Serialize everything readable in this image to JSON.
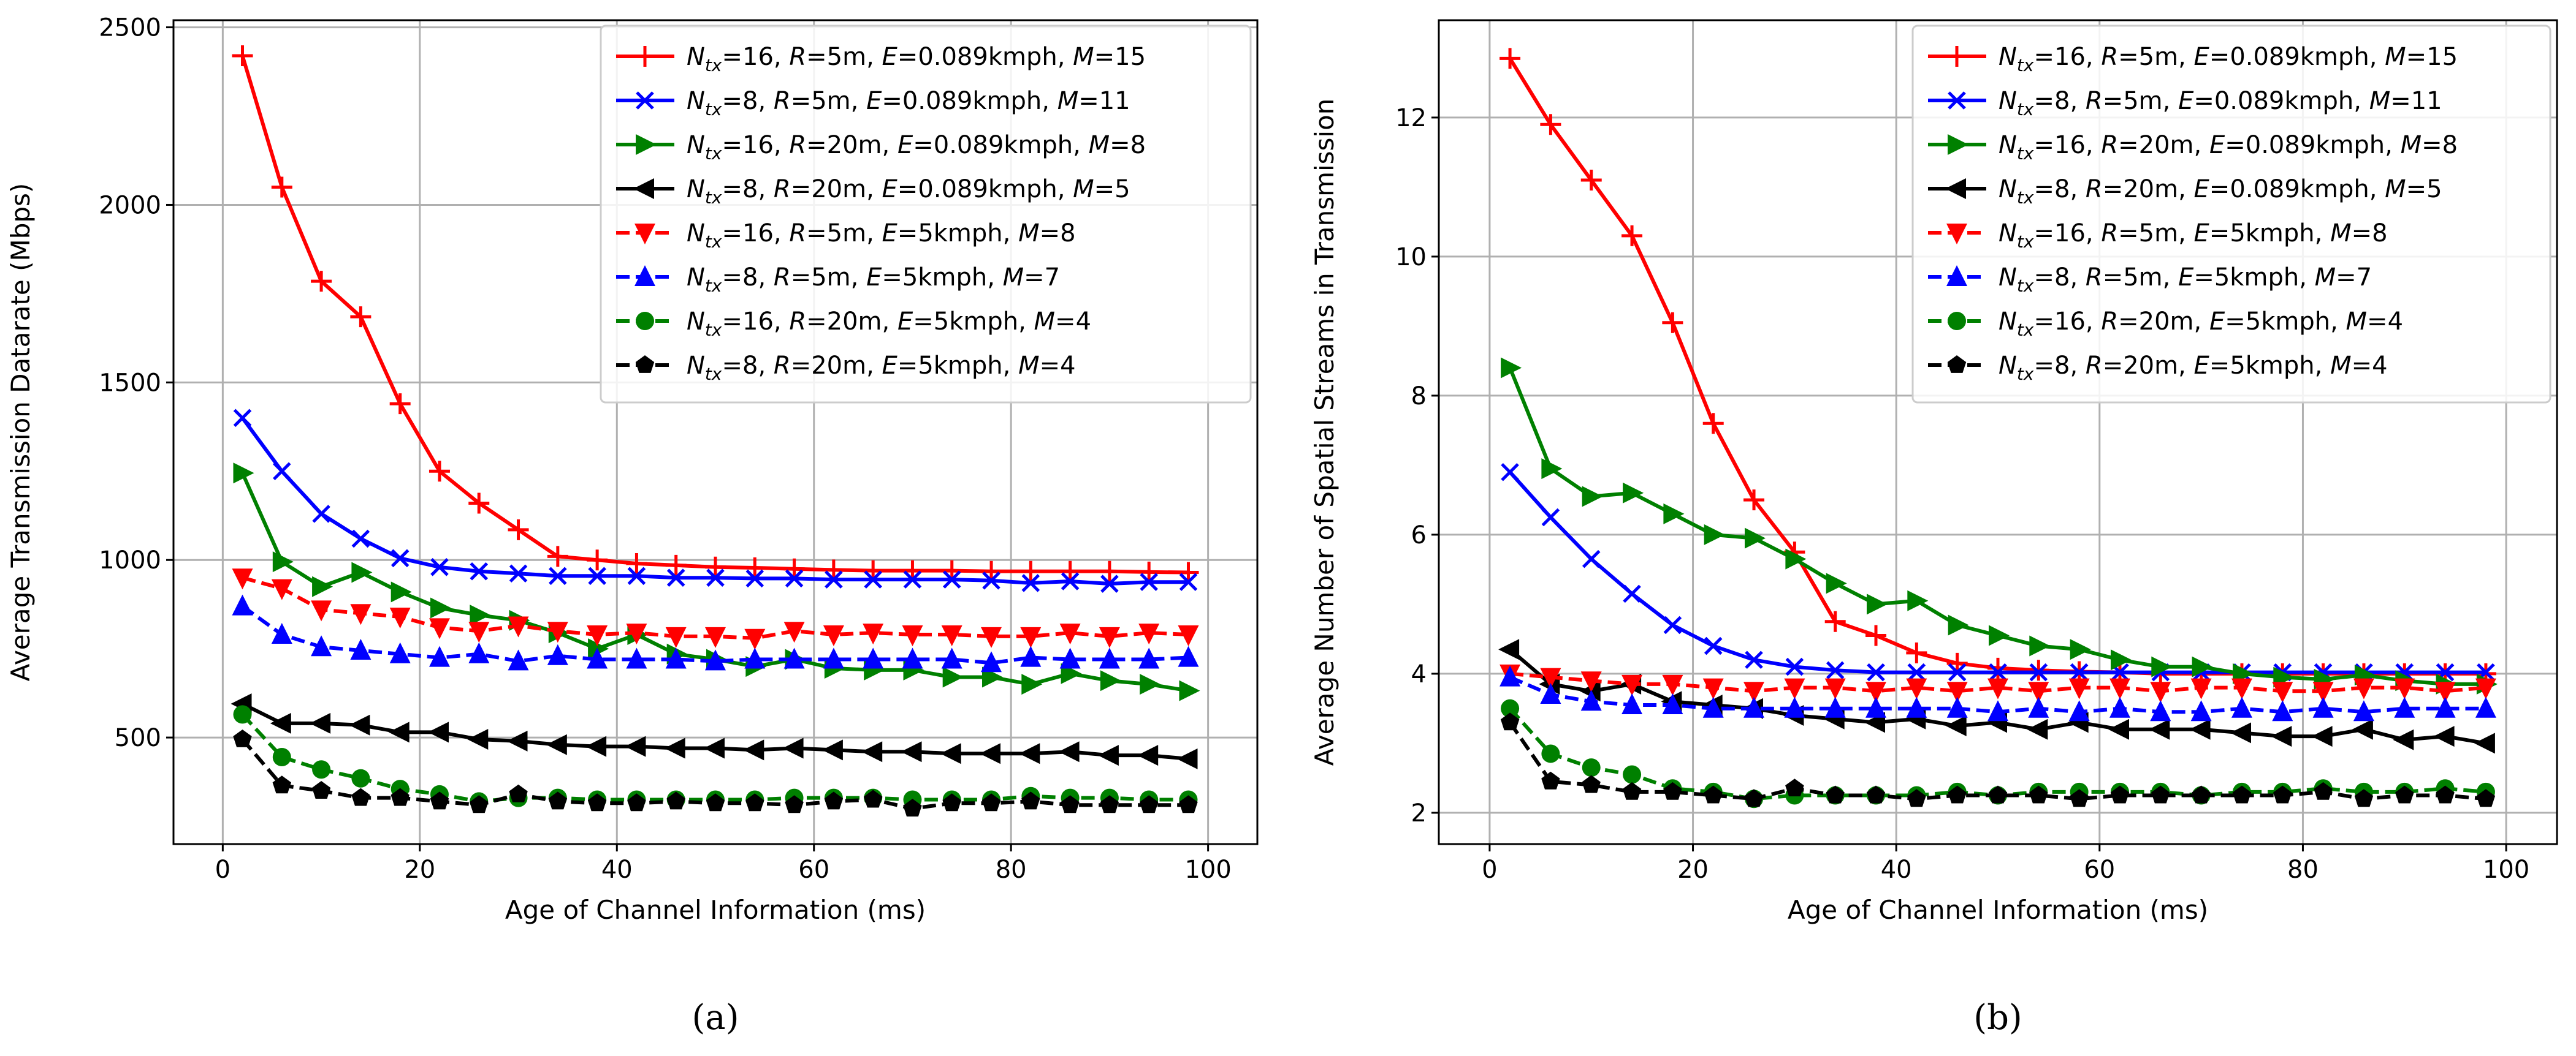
{
  "chart_data": [
    {
      "type": "line",
      "panel_label": "(a)",
      "xlabel": "Age of Channel Information (ms)",
      "ylabel": "Average Transmission Datarate (Mbps)",
      "xlim": [
        -5,
        105
      ],
      "ylim": [
        200,
        2520
      ],
      "xticks": [
        0,
        20,
        40,
        60,
        80,
        100
      ],
      "yticks": [
        500,
        1000,
        1500,
        2000,
        2500
      ],
      "grid": true,
      "legend_position": "top-right",
      "x": [
        2,
        6,
        10,
        14,
        18,
        22,
        26,
        30,
        34,
        38,
        42,
        46,
        50,
        54,
        58,
        62,
        66,
        70,
        74,
        78,
        82,
        86,
        90,
        94,
        98
      ],
      "series": [
        {
          "name": "Ntx=16, R=5m, E=0.089kmph, M=15",
          "label_parts": [
            "16",
            "5m",
            "0.089kmph",
            "15"
          ],
          "color": "#ff0000",
          "dash": "solid",
          "marker": "plus",
          "values": [
            2420,
            2050,
            1785,
            1685,
            1440,
            1250,
            1160,
            1085,
            1010,
            1000,
            990,
            985,
            980,
            978,
            975,
            972,
            970,
            970,
            970,
            968,
            968,
            968,
            968,
            966,
            965
          ]
        },
        {
          "name": "Ntx=8, R=5m, E=0.089kmph, M=11",
          "label_parts": [
            "8",
            "5m",
            "0.089kmph",
            "11"
          ],
          "color": "#0000ff",
          "dash": "solid",
          "marker": "x",
          "values": [
            1400,
            1250,
            1130,
            1060,
            1005,
            980,
            968,
            962,
            955,
            955,
            955,
            950,
            950,
            948,
            948,
            945,
            945,
            945,
            945,
            942,
            935,
            940,
            933,
            938,
            938
          ]
        },
        {
          "name": "Ntx=16, R=20m, E=0.089kmph, M=8",
          "label_parts": [
            "16",
            "20m",
            "0.089kmph",
            "8"
          ],
          "color": "#008000",
          "dash": "solid",
          "marker": "triangle-right",
          "values": [
            1245,
            995,
            925,
            965,
            910,
            865,
            845,
            830,
            795,
            750,
            790,
            735,
            720,
            700,
            720,
            695,
            690,
            690,
            670,
            670,
            650,
            680,
            660,
            650,
            632
          ]
        },
        {
          "name": "Ntx=8, R=20m, E=0.089kmph, M=5",
          "label_parts": [
            "8",
            "20m",
            "0.089kmph",
            "5"
          ],
          "color": "#000000",
          "dash": "solid",
          "marker": "triangle-left",
          "values": [
            595,
            540,
            540,
            535,
            515,
            515,
            495,
            490,
            480,
            475,
            475,
            470,
            470,
            465,
            470,
            465,
            460,
            460,
            455,
            455,
            455,
            460,
            450,
            450,
            440
          ]
        },
        {
          "name": "Ntx=16, R=5m, E=5kmph, M=8",
          "label_parts": [
            "16",
            "5m",
            "5kmph",
            "8"
          ],
          "color": "#ff0000",
          "dash": "dashed",
          "marker": "triangle-down",
          "values": [
            950,
            920,
            860,
            850,
            840,
            810,
            800,
            815,
            800,
            790,
            795,
            785,
            785,
            780,
            800,
            790,
            795,
            790,
            790,
            785,
            785,
            795,
            785,
            795,
            790
          ]
        },
        {
          "name": "Ntx=8, R=5m, E=5kmph, M=7",
          "label_parts": [
            "8",
            "5m",
            "5kmph",
            "7"
          ],
          "color": "#0000ff",
          "dash": "dashed",
          "marker": "triangle-up",
          "values": [
            870,
            790,
            755,
            745,
            735,
            725,
            735,
            715,
            730,
            720,
            720,
            720,
            715,
            720,
            720,
            720,
            720,
            720,
            720,
            710,
            725,
            720,
            720,
            720,
            725
          ]
        },
        {
          "name": "Ntx=16, R=20m, E=5kmph, M=4",
          "label_parts": [
            "16",
            "20m",
            "5kmph",
            "4"
          ],
          "color": "#008000",
          "dash": "dashed",
          "marker": "circle",
          "values": [
            565,
            445,
            410,
            385,
            355,
            340,
            320,
            330,
            330,
            325,
            325,
            325,
            325,
            325,
            330,
            330,
            330,
            325,
            325,
            325,
            335,
            330,
            330,
            325,
            325
          ]
        },
        {
          "name": "Ntx=8, R=20m, E=5kmph, M=4",
          "label_parts": [
            "8",
            "20m",
            "5kmph",
            "4"
          ],
          "color": "#000000",
          "dash": "dashed",
          "marker": "pentagon",
          "values": [
            495,
            365,
            350,
            330,
            330,
            320,
            310,
            340,
            320,
            315,
            315,
            320,
            315,
            315,
            310,
            320,
            325,
            300,
            315,
            315,
            320,
            310,
            310,
            310,
            310
          ]
        }
      ]
    },
    {
      "type": "line",
      "panel_label": "(b)",
      "xlabel": "Age of Channel Information (ms)",
      "ylabel": "Average Number of Spatial Streams in Transmission",
      "xlim": [
        -5,
        105
      ],
      "ylim": [
        1.55,
        13.4
      ],
      "xticks": [
        0,
        20,
        40,
        60,
        80,
        100
      ],
      "yticks": [
        2,
        4,
        6,
        8,
        10,
        12
      ],
      "grid": true,
      "legend_position": "top-right",
      "x": [
        2,
        6,
        10,
        14,
        18,
        22,
        26,
        30,
        34,
        38,
        42,
        46,
        50,
        54,
        58,
        62,
        66,
        70,
        74,
        78,
        82,
        86,
        90,
        94,
        98
      ],
      "series": [
        {
          "name": "Ntx=16, R=5m, E=0.089kmph, M=15",
          "label_parts": [
            "16",
            "5m",
            "0.089kmph",
            "15"
          ],
          "color": "#ff0000",
          "dash": "solid",
          "marker": "plus",
          "values": [
            12.85,
            11.9,
            11.1,
            10.3,
            9.05,
            7.6,
            6.5,
            5.75,
            4.75,
            4.55,
            4.3,
            4.15,
            4.08,
            4.05,
            4.03,
            4.02,
            4.0,
            4.0,
            4.0,
            4.0,
            4.0,
            4.0,
            4.0,
            4.0,
            4.0
          ]
        },
        {
          "name": "Ntx=8, R=5m, E=0.089kmph, M=11",
          "label_parts": [
            "8",
            "5m",
            "0.089kmph",
            "11"
          ],
          "color": "#0000ff",
          "dash": "solid",
          "marker": "x",
          "values": [
            6.9,
            6.25,
            5.65,
            5.15,
            4.7,
            4.4,
            4.2,
            4.1,
            4.05,
            4.02,
            4.02,
            4.02,
            4.02,
            4.02,
            4.02,
            4.02,
            4.02,
            4.02,
            4.02,
            4.02,
            4.02,
            4.02,
            4.02,
            4.02,
            4.02
          ]
        },
        {
          "name": "Ntx=16, R=20m, E=0.089kmph, M=8",
          "label_parts": [
            "16",
            "20m",
            "0.089kmph",
            "8"
          ],
          "color": "#008000",
          "dash": "solid",
          "marker": "triangle-right",
          "values": [
            8.4,
            6.95,
            6.55,
            6.6,
            6.3,
            6.0,
            5.95,
            5.65,
            5.3,
            5.0,
            5.05,
            4.7,
            4.55,
            4.4,
            4.35,
            4.2,
            4.1,
            4.1,
            4.0,
            3.95,
            3.92,
            3.98,
            3.9,
            3.85,
            3.85
          ]
        },
        {
          "name": "Ntx=8, R=20m, E=0.089kmph, M=5",
          "label_parts": [
            "8",
            "20m",
            "0.089kmph",
            "5"
          ],
          "color": "#000000",
          "dash": "solid",
          "marker": "triangle-left",
          "values": [
            4.35,
            3.85,
            3.75,
            3.85,
            3.6,
            3.55,
            3.5,
            3.4,
            3.35,
            3.3,
            3.35,
            3.25,
            3.3,
            3.2,
            3.3,
            3.2,
            3.2,
            3.2,
            3.15,
            3.1,
            3.1,
            3.2,
            3.05,
            3.1,
            3.0
          ]
        },
        {
          "name": "Ntx=16, R=5m, E=5kmph, M=8",
          "label_parts": [
            "16",
            "5m",
            "5kmph",
            "8"
          ],
          "color": "#ff0000",
          "dash": "dashed",
          "marker": "triangle-down",
          "values": [
            4.0,
            3.95,
            3.9,
            3.85,
            3.85,
            3.8,
            3.75,
            3.8,
            3.8,
            3.75,
            3.8,
            3.75,
            3.8,
            3.75,
            3.8,
            3.8,
            3.75,
            3.8,
            3.8,
            3.75,
            3.75,
            3.8,
            3.8,
            3.75,
            3.8
          ]
        },
        {
          "name": "Ntx=8, R=5m, E=5kmph, M=7",
          "label_parts": [
            "8",
            "5m",
            "5kmph",
            "7"
          ],
          "color": "#0000ff",
          "dash": "dashed",
          "marker": "triangle-up",
          "values": [
            3.95,
            3.7,
            3.6,
            3.55,
            3.55,
            3.5,
            3.5,
            3.5,
            3.5,
            3.5,
            3.5,
            3.5,
            3.45,
            3.5,
            3.45,
            3.5,
            3.45,
            3.45,
            3.5,
            3.45,
            3.5,
            3.45,
            3.5,
            3.5,
            3.5
          ]
        },
        {
          "name": "Ntx=16, R=20m, E=5kmph, M=4",
          "label_parts": [
            "16",
            "20m",
            "5kmph",
            "4"
          ],
          "color": "#008000",
          "dash": "dashed",
          "marker": "circle",
          "values": [
            3.5,
            2.85,
            2.65,
            2.55,
            2.35,
            2.3,
            2.2,
            2.25,
            2.25,
            2.25,
            2.25,
            2.3,
            2.25,
            2.3,
            2.3,
            2.3,
            2.3,
            2.25,
            2.3,
            2.3,
            2.35,
            2.3,
            2.3,
            2.35,
            2.3
          ]
        },
        {
          "name": "Ntx=8, R=20m, E=5kmph, M=4",
          "label_parts": [
            "8",
            "20m",
            "5kmph",
            "4"
          ],
          "color": "#000000",
          "dash": "dashed",
          "marker": "pentagon",
          "values": [
            3.3,
            2.45,
            2.4,
            2.3,
            2.3,
            2.25,
            2.2,
            2.35,
            2.25,
            2.25,
            2.2,
            2.25,
            2.25,
            2.25,
            2.2,
            2.25,
            2.25,
            2.25,
            2.25,
            2.25,
            2.3,
            2.2,
            2.25,
            2.25,
            2.2
          ]
        }
      ]
    }
  ]
}
